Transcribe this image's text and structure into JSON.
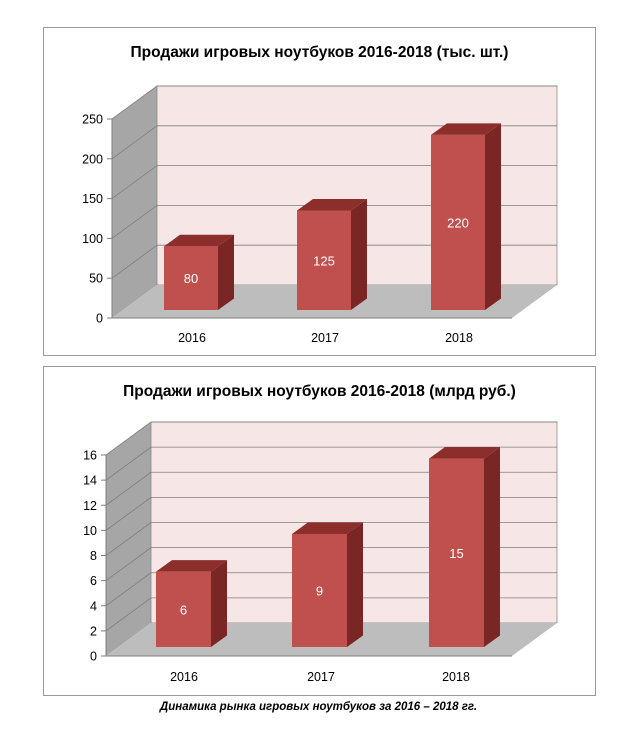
{
  "caption": "Динамика рынка игровых ноутбуков за 2016 – 2018 гг.",
  "colors": {
    "bar_front": "#c0504d",
    "bar_top": "#8c2e2b",
    "bar_side": "#7a2624",
    "back_wall": "#f7e6e6",
    "floor": "#bdbdbd",
    "side_wall": "#a6a6a6"
  },
  "chart_data": [
    {
      "type": "bar",
      "title": "Продажи игровых ноутбуков  2016-2018 (тыс. шт.)",
      "categories": [
        "2016",
        "2017",
        "2018"
      ],
      "values": [
        80,
        125,
        220
      ],
      "data_labels": [
        "80",
        "125",
        "220"
      ],
      "ylim": [
        0,
        250
      ],
      "yticks": [
        0,
        50,
        100,
        150,
        200,
        250
      ],
      "grid": true,
      "legend": "none"
    },
    {
      "type": "bar",
      "title": "Продажи игровых ноутбуков  2016-2018 (млрд руб.)",
      "categories": [
        "2016",
        "2017",
        "2018"
      ],
      "values": [
        6,
        9,
        15
      ],
      "data_labels": [
        "6",
        "9",
        "15"
      ],
      "ylim": [
        0,
        16
      ],
      "yticks": [
        0,
        2,
        4,
        6,
        8,
        10,
        12,
        14,
        16
      ],
      "grid": true,
      "legend": "none"
    }
  ]
}
